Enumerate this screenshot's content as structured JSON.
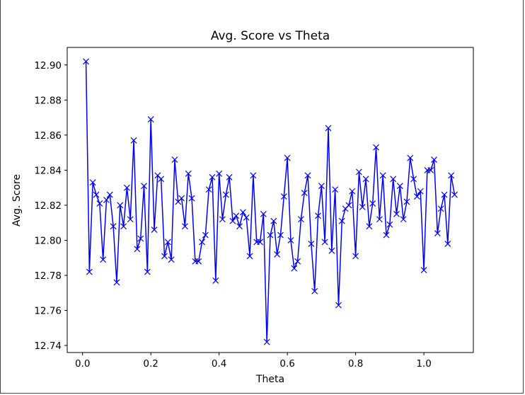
{
  "chart_data": {
    "type": "line",
    "title": "Avg. Score vs Theta",
    "xlabel": "Theta",
    "ylabel": "Avg. Score",
    "xlim": [
      -0.045,
      1.145
    ],
    "ylim": [
      12.736,
      12.91
    ],
    "xticks": [
      0.0,
      0.2,
      0.4,
      0.6,
      0.8,
      1.0
    ],
    "xtick_labels": [
      "0.0",
      "0.2",
      "0.4",
      "0.6",
      "0.8",
      "1.0"
    ],
    "yticks": [
      12.74,
      12.76,
      12.78,
      12.8,
      12.82,
      12.84,
      12.86,
      12.88,
      12.9
    ],
    "ytick_labels": [
      "12.74",
      "12.76",
      "12.78",
      "12.80",
      "12.82",
      "12.84",
      "12.86",
      "12.88",
      "12.90"
    ],
    "grid": false,
    "series": [
      {
        "color": "#0000ff",
        "marker": "x",
        "x": [
          0.01,
          0.02,
          0.03,
          0.04,
          0.05,
          0.06,
          0.07,
          0.08,
          0.09,
          0.1,
          0.11,
          0.12,
          0.13,
          0.14,
          0.15,
          0.16,
          0.17,
          0.18,
          0.19,
          0.2,
          0.21,
          0.22,
          0.23,
          0.24,
          0.25,
          0.26,
          0.27,
          0.28,
          0.29,
          0.3,
          0.31,
          0.32,
          0.33,
          0.34,
          0.35,
          0.36,
          0.37,
          0.38,
          0.39,
          0.4,
          0.41,
          0.42,
          0.43,
          0.44,
          0.45,
          0.46,
          0.47,
          0.48,
          0.49,
          0.5,
          0.51,
          0.52,
          0.53,
          0.54,
          0.55,
          0.56,
          0.57,
          0.58,
          0.59,
          0.6,
          0.61,
          0.62,
          0.63,
          0.64,
          0.65,
          0.66,
          0.67,
          0.68,
          0.69,
          0.7,
          0.71,
          0.72,
          0.73,
          0.74,
          0.75,
          0.76,
          0.77,
          0.78,
          0.79,
          0.8,
          0.81,
          0.82,
          0.83,
          0.84,
          0.85,
          0.86,
          0.87,
          0.88,
          0.89,
          0.9,
          0.91,
          0.92,
          0.93,
          0.94,
          0.95,
          0.96,
          0.97,
          0.98,
          0.99,
          1.0,
          1.01,
          1.02,
          1.03,
          1.04,
          1.05,
          1.06,
          1.07,
          1.08,
          1.09
        ],
        "y": [
          12.902,
          12.782,
          12.833,
          12.826,
          12.821,
          12.789,
          12.823,
          12.826,
          12.808,
          12.776,
          12.82,
          12.808,
          12.83,
          12.812,
          12.857,
          12.795,
          12.801,
          12.831,
          12.782,
          12.869,
          12.806,
          12.837,
          12.835,
          12.791,
          12.799,
          12.789,
          12.846,
          12.822,
          12.824,
          12.808,
          12.838,
          12.824,
          12.788,
          12.788,
          12.799,
          12.803,
          12.829,
          12.836,
          12.777,
          12.838,
          12.812,
          12.826,
          12.836,
          12.811,
          12.814,
          12.808,
          12.816,
          12.813,
          12.791,
          12.837,
          12.799,
          12.799,
          12.815,
          12.742,
          12.803,
          12.811,
          12.792,
          12.803,
          12.825,
          12.847,
          12.8,
          12.784,
          12.788,
          12.812,
          12.827,
          12.837,
          12.798,
          12.771,
          12.814,
          12.831,
          12.799,
          12.864,
          12.794,
          12.829,
          12.763,
          12.811,
          12.818,
          12.82,
          12.828,
          12.791,
          12.839,
          12.819,
          12.835,
          12.808,
          12.821,
          12.853,
          12.812,
          12.837,
          12.803,
          12.809,
          12.835,
          12.815,
          12.831,
          12.812,
          12.822,
          12.847,
          12.835,
          12.825,
          12.828,
          12.783,
          12.84,
          12.84,
          12.846,
          12.804,
          12.818,
          12.826,
          12.798,
          12.837,
          12.826
        ]
      }
    ]
  }
}
